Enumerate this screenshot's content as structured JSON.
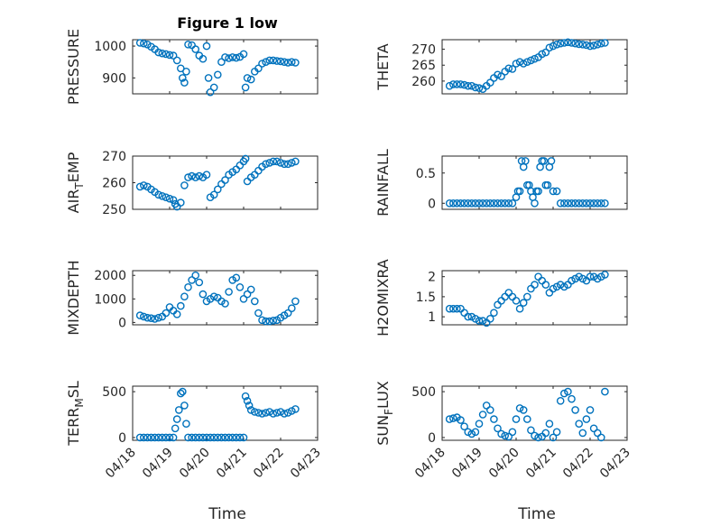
{
  "title": "Figure 1 low",
  "x_axis_label": "Time",
  "x_tick_labels": [
    "04/18",
    "04/19",
    "04/20",
    "04/21",
    "04/22",
    "04/23"
  ],
  "marker_color": "#0072bd",
  "chart_data": [
    {
      "type": "scatter",
      "ylabel_main": "PRESSURE",
      "ylabel_sub": "",
      "ylim": [
        850,
        1020
      ],
      "yticks": [
        900,
        1000
      ],
      "grid": true,
      "xlim": [
        0,
        5
      ],
      "x": [
        0.2,
        0.3,
        0.4,
        0.5,
        0.6,
        0.7,
        0.8,
        0.9,
        1.0,
        1.1,
        1.2,
        1.3,
        1.35,
        1.4,
        1.45,
        1.5,
        1.6,
        1.7,
        1.8,
        1.9,
        2.0,
        2.05,
        2.1,
        2.2,
        2.3,
        2.4,
        2.5,
        2.6,
        2.7,
        2.8,
        2.9,
        3.0,
        3.05,
        3.1,
        3.2,
        3.3,
        3.4,
        3.5,
        3.6,
        3.7,
        3.8,
        3.9,
        4.0,
        4.1,
        4.2,
        4.3,
        4.4
      ],
      "y": [
        1010,
        1008,
        1005,
        998,
        990,
        980,
        977,
        975,
        972,
        970,
        955,
        930,
        900,
        885,
        920,
        1005,
        1003,
        990,
        970,
        960,
        1000,
        900,
        855,
        870,
        910,
        950,
        965,
        962,
        965,
        963,
        966,
        975,
        870,
        900,
        895,
        920,
        930,
        945,
        950,
        955,
        955,
        953,
        952,
        950,
        948,
        950,
        948
      ]
    },
    {
      "type": "scatter",
      "ylabel_main": "THETA",
      "ylabel_sub": "",
      "ylim": [
        256,
        273
      ],
      "yticks": [
        260,
        265,
        270
      ],
      "grid": true,
      "xlim": [
        0,
        5
      ],
      "x": [
        0.2,
        0.3,
        0.4,
        0.5,
        0.6,
        0.7,
        0.8,
        0.9,
        1.0,
        1.1,
        1.2,
        1.3,
        1.4,
        1.5,
        1.6,
        1.7,
        1.8,
        1.9,
        2.0,
        2.1,
        2.2,
        2.3,
        2.4,
        2.5,
        2.6,
        2.7,
        2.8,
        2.9,
        3.0,
        3.1,
        3.2,
        3.3,
        3.4,
        3.5,
        3.6,
        3.7,
        3.8,
        3.9,
        4.0,
        4.1,
        4.2,
        4.3,
        4.4
      ],
      "y": [
        258.5,
        259,
        259,
        259,
        258.8,
        258.5,
        258.5,
        258,
        257.8,
        257.5,
        258.5,
        259.5,
        261,
        262,
        261.5,
        263,
        264,
        263.8,
        265.5,
        266,
        265.5,
        266,
        266.5,
        267,
        267.5,
        268.5,
        269,
        270.5,
        271,
        271.5,
        271.8,
        272,
        272.2,
        272,
        271.8,
        271.6,
        271.5,
        271.3,
        271,
        271.2,
        271.5,
        271.8,
        272
      ]
    },
    {
      "type": "scatter",
      "ylabel_main": "AIR",
      "ylabel_sub": "T",
      "ylabel_tail": "EMP",
      "ylim": [
        250,
        270
      ],
      "yticks": [
        250,
        260,
        270
      ],
      "grid": true,
      "xlim": [
        0,
        5
      ],
      "x": [
        0.2,
        0.3,
        0.4,
        0.5,
        0.6,
        0.7,
        0.8,
        0.9,
        1.0,
        1.1,
        1.15,
        1.2,
        1.3,
        1.4,
        1.5,
        1.6,
        1.7,
        1.8,
        1.9,
        2.0,
        2.1,
        2.2,
        2.3,
        2.4,
        2.5,
        2.6,
        2.7,
        2.8,
        2.9,
        3.0,
        3.05,
        3.1,
        3.2,
        3.3,
        3.4,
        3.5,
        3.6,
        3.7,
        3.8,
        3.9,
        4.0,
        4.1,
        4.2,
        4.3,
        4.4
      ],
      "y": [
        258.5,
        259,
        258.5,
        257.5,
        256.5,
        255.5,
        255,
        254.5,
        254,
        253.5,
        252,
        251,
        252.5,
        259,
        262,
        262.5,
        262,
        262.5,
        262,
        263,
        254.5,
        255.5,
        257.5,
        259.5,
        261,
        263,
        264,
        265,
        266.5,
        268,
        269,
        260.5,
        262,
        263,
        264.5,
        266,
        267,
        267.5,
        268,
        268,
        267.5,
        267,
        267,
        267.5,
        268
      ]
    },
    {
      "type": "scatter",
      "ylabel_main": "RAINFALL",
      "ylabel_sub": "",
      "ylim": [
        -0.1,
        0.78
      ],
      "yticks": [
        0,
        0.5
      ],
      "grid": true,
      "xlim": [
        0,
        5
      ],
      "x": [
        0.2,
        0.3,
        0.4,
        0.5,
        0.6,
        0.7,
        0.8,
        0.9,
        1.0,
        1.1,
        1.2,
        1.3,
        1.4,
        1.5,
        1.6,
        1.7,
        1.8,
        1.9,
        2.0,
        2.05,
        2.1,
        2.15,
        2.2,
        2.25,
        2.3,
        2.35,
        2.4,
        2.45,
        2.5,
        2.55,
        2.6,
        2.65,
        2.7,
        2.75,
        2.8,
        2.85,
        2.9,
        2.95,
        3.0,
        3.1,
        3.2,
        3.3,
        3.4,
        3.5,
        3.6,
        3.7,
        3.8,
        3.9,
        4.0,
        4.1,
        4.2,
        4.3,
        4.4
      ],
      "y": [
        0,
        0,
        0,
        0,
        0,
        0,
        0,
        0,
        0,
        0,
        0,
        0,
        0,
        0,
        0,
        0,
        0,
        0,
        0.1,
        0.2,
        0.2,
        0.7,
        0.6,
        0.7,
        0.3,
        0.3,
        0.2,
        0.1,
        0,
        0.2,
        0.2,
        0.6,
        0.7,
        0.7,
        0.3,
        0.3,
        0.6,
        0.7,
        0.2,
        0.2,
        0,
        0,
        0,
        0,
        0,
        0,
        0,
        0,
        0,
        0,
        0,
        0,
        0
      ]
    },
    {
      "type": "scatter",
      "ylabel_main": "MIXDEPTH",
      "ylabel_sub": "",
      "ylim": [
        -100,
        2200
      ],
      "yticks": [
        0,
        1000,
        2000
      ],
      "grid": true,
      "xlim": [
        0,
        5
      ],
      "x": [
        0.2,
        0.3,
        0.4,
        0.5,
        0.6,
        0.7,
        0.8,
        0.9,
        1.0,
        1.1,
        1.2,
        1.3,
        1.4,
        1.5,
        1.6,
        1.7,
        1.8,
        1.9,
        2.0,
        2.1,
        2.2,
        2.3,
        2.4,
        2.5,
        2.6,
        2.7,
        2.8,
        2.9,
        3.0,
        3.1,
        3.2,
        3.3,
        3.4,
        3.5,
        3.6,
        3.7,
        3.8,
        3.9,
        4.0,
        4.1,
        4.2,
        4.3,
        4.4
      ],
      "y": [
        300,
        250,
        200,
        180,
        150,
        200,
        250,
        400,
        650,
        500,
        350,
        700,
        1100,
        1500,
        1800,
        2000,
        1700,
        1200,
        900,
        1000,
        1100,
        1050,
        900,
        800,
        1300,
        1800,
        1900,
        1500,
        1000,
        1200,
        1400,
        900,
        400,
        100,
        50,
        50,
        80,
        100,
        200,
        300,
        400,
        600,
        900
      ]
    },
    {
      "type": "scatter",
      "ylabel_main": "H2OMIXRA",
      "ylabel_sub": "",
      "ylim": [
        0.8,
        2.15
      ],
      "yticks": [
        1,
        1.5,
        2
      ],
      "grid": true,
      "xlim": [
        0,
        5
      ],
      "x": [
        0.2,
        0.3,
        0.4,
        0.5,
        0.6,
        0.7,
        0.8,
        0.9,
        1.0,
        1.1,
        1.2,
        1.3,
        1.4,
        1.5,
        1.6,
        1.7,
        1.8,
        1.9,
        2.0,
        2.1,
        2.2,
        2.3,
        2.4,
        2.5,
        2.6,
        2.7,
        2.8,
        2.9,
        3.0,
        3.1,
        3.2,
        3.3,
        3.4,
        3.5,
        3.6,
        3.7,
        3.8,
        3.9,
        4.0,
        4.1,
        4.2,
        4.3,
        4.4
      ],
      "y": [
        1.2,
        1.2,
        1.2,
        1.2,
        1.1,
        1.0,
        1.0,
        0.95,
        0.9,
        0.9,
        0.85,
        0.95,
        1.1,
        1.3,
        1.4,
        1.5,
        1.6,
        1.5,
        1.4,
        1.2,
        1.35,
        1.5,
        1.7,
        1.8,
        2.0,
        1.9,
        1.8,
        1.6,
        1.7,
        1.75,
        1.8,
        1.75,
        1.8,
        1.9,
        1.95,
        2.0,
        1.95,
        1.9,
        2.0,
        2.0,
        1.95,
        2.0,
        2.05
      ]
    },
    {
      "type": "scatter",
      "ylabel_main": "TERR",
      "ylabel_sub": "M",
      "ylabel_tail": "SL",
      "ylim": [
        -30,
        560
      ],
      "yticks": [
        0,
        500
      ],
      "grid": true,
      "xlim": [
        0,
        5
      ],
      "x": [
        0.2,
        0.3,
        0.4,
        0.5,
        0.6,
        0.7,
        0.8,
        0.9,
        1.0,
        1.1,
        1.15,
        1.2,
        1.25,
        1.3,
        1.35,
        1.4,
        1.45,
        1.5,
        1.6,
        1.7,
        1.8,
        1.9,
        2.0,
        2.1,
        2.2,
        2.3,
        2.4,
        2.5,
        2.6,
        2.7,
        2.8,
        2.9,
        3.0,
        3.05,
        3.1,
        3.15,
        3.2,
        3.3,
        3.4,
        3.5,
        3.6,
        3.7,
        3.8,
        3.9,
        4.0,
        4.1,
        4.2,
        4.3,
        4.4
      ],
      "y": [
        0,
        0,
        0,
        0,
        0,
        0,
        0,
        0,
        0,
        0,
        100,
        200,
        300,
        480,
        500,
        350,
        150,
        0,
        0,
        0,
        0,
        0,
        0,
        0,
        0,
        0,
        0,
        0,
        0,
        0,
        0,
        0,
        0,
        450,
        400,
        350,
        300,
        280,
        270,
        260,
        270,
        280,
        260,
        270,
        280,
        260,
        270,
        290,
        310
      ]
    },
    {
      "type": "scatter",
      "ylabel_main": "SUN",
      "ylabel_sub": "F",
      "ylabel_tail": "LUX",
      "ylim": [
        -30,
        560
      ],
      "yticks": [
        0,
        500
      ],
      "grid": true,
      "xlim": [
        0,
        5
      ],
      "x": [
        0.2,
        0.3,
        0.4,
        0.5,
        0.6,
        0.7,
        0.8,
        0.9,
        1.0,
        1.1,
        1.2,
        1.3,
        1.4,
        1.5,
        1.6,
        1.7,
        1.8,
        1.9,
        2.0,
        2.1,
        2.2,
        2.3,
        2.4,
        2.5,
        2.6,
        2.7,
        2.8,
        2.9,
        3.0,
        3.1,
        3.2,
        3.3,
        3.4,
        3.5,
        3.6,
        3.7,
        3.8,
        3.9,
        4.0,
        4.1,
        4.2,
        4.3,
        4.4
      ],
      "y": [
        200,
        210,
        220,
        190,
        120,
        60,
        40,
        60,
        150,
        250,
        350,
        300,
        200,
        100,
        40,
        20,
        10,
        60,
        200,
        320,
        300,
        200,
        80,
        20,
        0,
        10,
        50,
        150,
        0,
        60,
        400,
        480,
        500,
        420,
        300,
        150,
        50,
        200,
        300,
        100,
        50,
        0,
        500
      ]
    }
  ]
}
